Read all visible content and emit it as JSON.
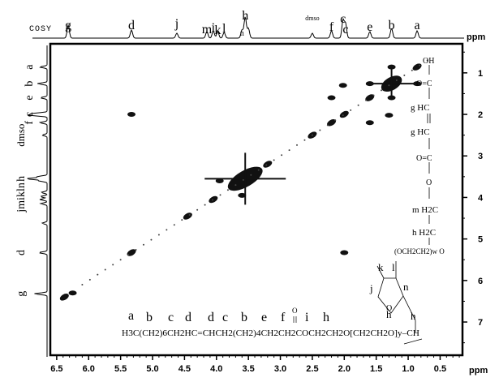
{
  "experiment_label": "COSY",
  "axis_unit": "ppm",
  "chart_data": {
    "type": "scatter",
    "title": "COSY",
    "xlabel": "ppm",
    "ylabel": "ppm",
    "xlim": [
      6.6,
      0.15
    ],
    "ylim": [
      0.3,
      7.8
    ],
    "x_ticks": [
      "6.5",
      "6.0",
      "5.5",
      "5.0",
      "4.5",
      "4.0",
      "3.5",
      "3.0",
      "2.5",
      "2.0",
      "1.5",
      "1.0",
      "0.5"
    ],
    "y_ticks": [
      "1",
      "2",
      "3",
      "4",
      "5",
      "6",
      "7"
    ],
    "top_peak_labels": [
      {
        "label": "g",
        "ppm": 6.32
      },
      {
        "label": "d",
        "ppm": 5.33
      },
      {
        "label": "j",
        "ppm": 4.62
      },
      {
        "label": "m",
        "ppm": 4.15
      },
      {
        "label": "i",
        "ppm": 4.05
      },
      {
        "label": "k",
        "ppm": 3.98
      },
      {
        "label": "l",
        "ppm": 3.88
      },
      {
        "label": "h",
        "ppm": 3.55
      },
      {
        "label": "n",
        "ppm": 3.6
      },
      {
        "label": "dmso",
        "ppm": 2.5
      },
      {
        "label": "f",
        "ppm": 2.2
      },
      {
        "label": "c",
        "ppm": 2.02
      },
      {
        "label": "c",
        "ppm": 1.98
      },
      {
        "label": "e",
        "ppm": 1.6
      },
      {
        "label": "b",
        "ppm": 1.26
      },
      {
        "label": "a",
        "ppm": 0.86
      }
    ],
    "left_peak_labels": [
      {
        "label": "a",
        "ppm": 0.86
      },
      {
        "label": "b",
        "ppm": 1.26
      },
      {
        "label": "e",
        "ppm": 1.6
      },
      {
        "label": "c",
        "ppm": 2.0
      },
      {
        "label": "f",
        "ppm": 2.2
      },
      {
        "label": "dmso",
        "ppm": 2.5
      },
      {
        "label": "h",
        "ppm": 3.55
      },
      {
        "label": "jmikln",
        "ppm": 4.0
      },
      {
        "label": "d",
        "ppm": 5.33
      },
      {
        "label": "g",
        "ppm": 6.32
      }
    ],
    "diagonal_peaks": [
      {
        "x": 6.38,
        "y": 6.4
      },
      {
        "x": 5.33,
        "y": 5.33
      },
      {
        "x": 4.45,
        "y": 4.45
      },
      {
        "x": 4.05,
        "y": 4.05
      },
      {
        "x": 3.55,
        "y": 3.55
      },
      {
        "x": 3.2,
        "y": 3.2
      },
      {
        "x": 2.5,
        "y": 2.5
      },
      {
        "x": 2.2,
        "y": 2.2
      },
      {
        "x": 2.0,
        "y": 2.0
      },
      {
        "x": 1.6,
        "y": 1.6
      },
      {
        "x": 1.26,
        "y": 1.26
      },
      {
        "x": 0.86,
        "y": 0.86
      }
    ],
    "cross_peaks": [
      {
        "x": 6.25,
        "y": 6.3
      },
      {
        "x": 5.33,
        "y": 2.0
      },
      {
        "x": 2.0,
        "y": 5.33
      },
      {
        "x": 1.26,
        "y": 0.86
      },
      {
        "x": 0.86,
        "y": 1.26
      },
      {
        "x": 1.26,
        "y": 1.6
      },
      {
        "x": 1.6,
        "y": 1.26
      },
      {
        "x": 2.2,
        "y": 1.6
      },
      {
        "x": 1.6,
        "y": 2.2
      },
      {
        "x": 2.02,
        "y": 1.3
      },
      {
        "x": 1.3,
        "y": 2.02
      },
      {
        "x": 3.95,
        "y": 3.6
      },
      {
        "x": 3.6,
        "y": 3.95
      }
    ]
  },
  "side_structure": {
    "groups": [
      "OH",
      "O=C",
      "g HC",
      "g HC",
      "O=C",
      "O",
      "m H2C",
      "h H2C",
      "(OCH2CH2)w O"
    ]
  },
  "ring_structure": {
    "labels": [
      "k",
      "l",
      "j",
      "n",
      "h",
      "O",
      "h"
    ]
  },
  "formula": {
    "peak_letters": [
      "a",
      "b",
      "c",
      "d",
      "d",
      "c",
      "b",
      "e",
      "f",
      "O",
      "i",
      "h"
    ],
    "text": "H3C(CH2)6CH2HC=CHCH2(CH2)4CH2CH2COCH2CH2O[CH2CH2O]y–CH"
  }
}
